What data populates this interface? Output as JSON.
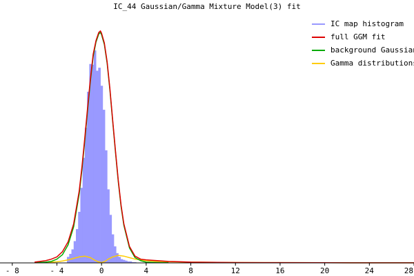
{
  "chart_data": {
    "type": "area",
    "title": "IC_44 Gaussian/Gamma Mixture Model(3) fit",
    "xlabel": "",
    "ylabel": "",
    "xlim": [
      -9.1,
      28
    ],
    "ylim": [
      0,
      330
    ],
    "x_ticks": [
      -8,
      -4,
      0,
      4,
      8,
      12,
      16,
      20,
      24,
      28
    ],
    "x_tick_labels": [
      "- 8",
      "- 4",
      "0",
      "4",
      "8",
      "12",
      "16",
      "20",
      "24",
      "28"
    ],
    "grid": false,
    "legend_position": "top-right",
    "series": [
      {
        "name": "IC map histogram",
        "kind": "histogram",
        "color": "#9999ff",
        "bin_width": 0.2,
        "bins_x": [
          -3.0,
          -2.8,
          -2.6,
          -2.4,
          -2.2,
          -2.0,
          -1.8,
          -1.6,
          -1.4,
          -1.2,
          -1.0,
          -0.8,
          -0.6,
          -0.4,
          -0.2,
          0.0,
          0.2,
          0.4,
          0.6,
          0.8,
          1.0,
          1.2,
          1.4,
          1.6,
          1.8,
          2.0,
          2.2,
          2.4,
          2.6,
          2.8,
          3.0
        ],
        "bins_y": [
          8,
          12,
          18,
          29,
          45,
          68,
          100,
          140,
          180,
          228,
          265,
          264,
          283,
          256,
          260,
          236,
          204,
          150,
          98,
          64,
          38,
          22,
          13,
          8,
          5,
          4,
          3,
          2,
          2,
          1,
          1
        ]
      },
      {
        "name": "full GGM fit",
        "kind": "line",
        "color": "#dd0000",
        "x": [
          -6.0,
          -5.0,
          -4.5,
          -4.0,
          -3.5,
          -3.0,
          -2.5,
          -2.0,
          -1.75,
          -1.5,
          -1.25,
          -1.0,
          -0.75,
          -0.5,
          -0.25,
          -0.1,
          0.0,
          0.25,
          0.5,
          0.75,
          1.0,
          1.25,
          1.5,
          1.75,
          2.0,
          2.5,
          3.0,
          3.5,
          4.0,
          5.0,
          6.0,
          8.0,
          12.0,
          16.0,
          20.0,
          24.0,
          28.0
        ],
        "y": [
          1,
          3,
          5,
          8,
          15,
          28,
          52,
          96,
          129,
          167,
          207,
          245,
          278,
          296,
          307,
          309,
          306,
          293,
          268,
          232,
          190,
          149,
          110,
          77,
          52,
          22,
          9,
          5,
          4,
          3,
          2,
          1,
          0.5,
          0.3,
          0.2,
          0.1,
          0.1
        ]
      },
      {
        "name": "background Gaussian",
        "kind": "line",
        "color": "#00aa00",
        "x": [
          -6.0,
          -5.0,
          -4.5,
          -4.0,
          -3.5,
          -3.0,
          -2.5,
          -2.0,
          -1.75,
          -1.5,
          -1.25,
          -1.0,
          -0.75,
          -0.5,
          -0.25,
          -0.1,
          0.0,
          0.25,
          0.5,
          0.75,
          1.0,
          1.25,
          1.5,
          1.75,
          2.0,
          2.5,
          3.0,
          3.5,
          4.0,
          5.0,
          6.0
        ],
        "y": [
          0.2,
          1,
          2,
          5,
          11,
          24,
          48,
          92,
          125,
          163,
          203,
          242,
          275,
          294,
          305,
          307,
          304,
          291,
          266,
          230,
          188,
          147,
          108,
          75,
          50,
          20,
          7,
          3,
          1,
          0.5,
          0.2
        ]
      },
      {
        "name": "Gamma distributions",
        "kind": "line",
        "color": "#ffcc00",
        "x": [
          -6.0,
          -5.0,
          -4.0,
          -3.5,
          -3.0,
          -2.5,
          -2.0,
          -1.5,
          -1.0,
          -0.6,
          -0.3,
          0.0,
          0.3,
          0.6,
          1.0,
          1.5,
          2.0,
          2.5,
          3.0,
          3.5,
          4.0,
          5.0,
          6.0,
          8.0,
          12.0,
          16.0,
          20.0,
          24.0,
          28.0
        ],
        "y": [
          0.2,
          0.5,
          1.5,
          2.5,
          4,
          6,
          8,
          9,
          7,
          3.5,
          1.5,
          0.5,
          2,
          5,
          8,
          10,
          9,
          7,
          5,
          4,
          3,
          2,
          1.5,
          1,
          0.5,
          0.3,
          0.2,
          0.1,
          0.1
        ]
      }
    ]
  }
}
